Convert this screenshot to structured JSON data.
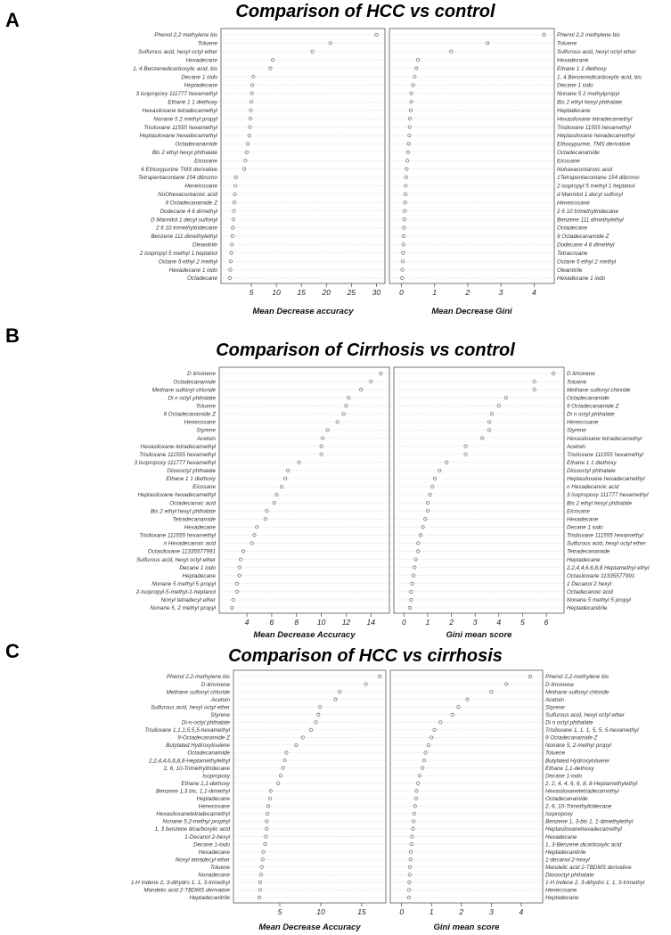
{
  "panels": [
    {
      "letter": "A",
      "title": "Comparison of HCC vs control",
      "left": {
        "xlabel": "Mean Decrease accuracy",
        "xlim": [
          0,
          31
        ],
        "ticks": [
          5,
          10,
          15,
          20,
          25,
          30
        ],
        "labels": [
          "Phenol 2,2 methylene bis",
          "Toluene",
          "Sulfurous acid, hexyl octyl ether",
          "Hexadecane",
          "1, 4 Benzenedicarboxylic acid, bis",
          "Decane 1 iodo",
          "Heptadecane",
          "3 isopropoxy 111777 hexamethyl",
          "Ethane 1 1 diethoxy",
          "Hexasiloxane tetradecamethyl",
          "Nonane 5 2 methyl propyl",
          "Trisiloxane 11555 hexamethyl",
          "Heptasiloxane hexadecamethyl",
          "Octadecanamide",
          "Bis 2 ethyl hexyl phthalate",
          "Eicosane",
          "6 Ethoxypurine TMS derivative",
          "Tetrapentacontane 154 dibromo",
          "Heneicosane",
          "NoOhexacontanoic acid",
          "9 Octadecanamide Z",
          "Dodecane 4 6 dimethyl",
          "D Mannitol 1 decyl sulfonyl",
          "2 6 10 trimethyltridecane",
          "Benzene 111 dimethylethyl",
          "Oleanitrile",
          "2 isopropyl 5 methyl 1 heptanol",
          "Octane 5 ethyl 2 methyl",
          "Hexadecane 1 iodo",
          "Octadecane"
        ],
        "values": [
          30,
          20.8,
          17.2,
          9.3,
          8.8,
          5.4,
          5.2,
          5.1,
          5.0,
          4.9,
          4.8,
          4.7,
          4.6,
          4.3,
          4.1,
          3.8,
          3.6,
          1.9,
          1.8,
          1.7,
          1.6,
          1.5,
          1.4,
          1.3,
          1.2,
          1.1,
          1.0,
          0.9,
          0.8,
          0.7
        ]
      },
      "right": {
        "xlabel": "Mean Decrease Gini",
        "xlim": [
          -0.2,
          4.5
        ],
        "ticks": [
          0,
          1,
          2,
          3,
          4
        ],
        "labels": [
          "Phenol 2,2 methylene bis",
          "Toluene",
          "Sulfurous acid, hexyl octyl ether",
          "Hexadecane",
          "Ethane 1 1 diethoxy",
          "1, 4 Benzenedicarboxylic acid, bis",
          "Decane 1 iodo",
          "Nonane 5 2 methylpropyl",
          "Bis 2 ethyl hexyl phthalate",
          "Heptadecane",
          "Hexasiloxane tetradecamethyl",
          "Trisiloxane 11555 hexamethyl",
          "Heptasiloxane hexadecamethyl",
          "Ethoxypurine, TMS derivative",
          "Octadecanamide",
          "Eicosane",
          "Nohaxacontanoic acid",
          "1Tetrapentacontane 154 dibromo",
          "2 isopropyl 5 methyl 1 heptanol",
          "d Mannitol 1 decyl sulfonyl",
          "Heneicosane",
          "2 6 10 trimethyltridecane",
          "Benzene 111 dimethylethyl",
          "Octadecane",
          "9 Octadecanamide Z",
          "Dodecane 4 6 dimethyl",
          "Tetracosane",
          "Octane 5 ethyl 2 methyl",
          "Oleanitrile",
          "Hexadecane 1 iodo"
        ],
        "values": [
          4.3,
          2.6,
          1.5,
          0.5,
          0.45,
          0.4,
          0.35,
          0.3,
          0.3,
          0.28,
          0.26,
          0.25,
          0.24,
          0.22,
          0.2,
          0.18,
          0.16,
          0.14,
          0.13,
          0.12,
          0.11,
          0.1,
          0.09,
          0.08,
          0.07,
          0.06,
          0.05,
          0.04,
          0.03,
          0.02
        ]
      }
    },
    {
      "letter": "B",
      "title": "Comparison of Cirrhosis vs control",
      "left": {
        "xlabel": "Mean Decrease Accuracy",
        "xlim": [
          2.2,
          15.2
        ],
        "ticks": [
          4,
          6,
          8,
          10,
          12,
          14
        ],
        "labels": [
          "D limonene",
          "Octadecanamide",
          "Methane sulfonyl chloride",
          "Di n octyl phthalate",
          "Toluene",
          "9 Octadecanamide Z",
          "Henecosane",
          "Styrene",
          "Acetoin",
          "Hexasiloxane tetradecamethyl",
          "Trisiloxane 111555 hexamethyl",
          "3 isopropoxy 111777 hexamethyl",
          "Diisooctyl phthalate",
          "Ethane 1 1 diethoxy",
          "Eicosane",
          "Heptasiloxane hexadecamethyl",
          "Octadecanoic acid",
          "Bis 2 ethyl hexyl phthalate",
          "Tetradecanamide",
          "Hexadecane",
          "Trisiloxane 111555 hexamethyl",
          "n Hexadecanoic acid",
          "Octasiloxane 11335577991",
          "Sulfurous acid, hexyl octyl ether",
          "Decane 1 iodo",
          "Heptadecane",
          "Nonane 5 methyl 5 propyl",
          "2-Isopropyl-5-methyl-1-heptanol",
          "Nonyl tetradecyl ether",
          "Nonane 5, 2 methyl propyl"
        ],
        "values": [
          14.8,
          14.0,
          13.2,
          12.2,
          12.0,
          11.8,
          11.3,
          10.5,
          10.1,
          10.0,
          10.0,
          8.2,
          7.3,
          7.1,
          6.8,
          6.4,
          6.2,
          5.6,
          5.5,
          4.8,
          4.6,
          4.4,
          3.7,
          3.5,
          3.4,
          3.4,
          3.2,
          3.2,
          2.9,
          2.8
        ]
      },
      "right": {
        "xlabel": "Gini mean score",
        "xlim": [
          -0.2,
          6.6
        ],
        "ticks": [
          0,
          1,
          2,
          3,
          4,
          5,
          6
        ],
        "labels": [
          "D limonene",
          "Toluene",
          "Methane sulfonyl chloride",
          "Octadecanamide",
          "9 Octadecanamide Z",
          "Di n octyl phthalate",
          "Henecosane",
          "Styrene",
          "Hexasiloxane tetradecamethyl",
          "Acetoin",
          "Trisiloxane 111555 hexamethyl",
          "Ethane 1 1 diethoxy",
          "Diisooctyl phthalate",
          "Heptasiloxane hexadecamethyl",
          "n Hexadecanoic acid",
          "3 isopropoxy 111777 hexamethyl",
          "Bis 2 ethyl hexyl phthalate",
          "Eicosane",
          "Hexadecane",
          "Decane 1 iodo",
          "Trisiloxane 111555 hexamethyl",
          "Sulfurous acid, hexyl octyl ether",
          "Tetradecanamide",
          "Heptadecane",
          "2,2,4,4,6,6,8,8 Heptamethyl ethyl",
          "Octasiloxane 11335577991",
          "1 Decanol 2 hexyl",
          "Octadecanoic acid",
          "Nonane 5 methyl 5 propyl",
          "Heptadecanitrile"
        ],
        "values": [
          6.3,
          5.5,
          5.5,
          4.3,
          4.0,
          3.7,
          3.6,
          3.6,
          3.3,
          2.6,
          2.6,
          1.8,
          1.5,
          1.3,
          1.2,
          1.1,
          1.0,
          1.0,
          0.9,
          0.8,
          0.7,
          0.6,
          0.6,
          0.5,
          0.45,
          0.4,
          0.35,
          0.3,
          0.3,
          0.25
        ]
      }
    },
    {
      "letter": "C",
      "title": "Comparison of HCC vs cirrhosis",
      "left": {
        "xlabel": "Mean Decrease Accuracy",
        "xlim": [
          0,
          17.5
        ],
        "ticks": [
          5,
          10,
          15
        ],
        "labels": [
          "Phenol 2,2-methylene bis",
          "D-limonene",
          "Methane sulfonyl chloride",
          "Acetoin",
          "Sulfurous acid, hexyl octyl ether",
          "Styrene",
          "Di-n-octyl phthalate",
          "Trisiloxane 1,1,1,5,5,5-hexamethyl",
          "9-Octadecanamide Z",
          "Butylated Hydroxytoulene",
          "Octadecanamide",
          "2,2,4,4,6,6,8,8-Heptamethylethyl",
          "2, 6, 10-Trimethyltridecane",
          "Isopropoxy",
          "Ethane 1,1-dethoxy",
          "Benzene 1,3 bis, 1,1-dimethyl",
          "Heptadecane",
          "Henecosane",
          "Hexasiloxanetetradecamethyl",
          "Nonane 5,2-methyl prophyl",
          "1, 3 benzene dicarboxylic acid",
          "1-Decanol 2-hexyl",
          "Decane 1-iodo",
          "Hexadecane",
          "Nonyl tetradecyl ether",
          "Toluene",
          "Nonadecane",
          "1-H Indene 2, 3-dihydro 1, 1, 3-trimethyl",
          "Mandelic acid 2-TBDMS derivative",
          "Heptadecanitrile"
        ],
        "values": [
          17.2,
          15.5,
          12.3,
          11.8,
          9.9,
          9.7,
          9.4,
          8.8,
          7.8,
          7.0,
          5.8,
          5.6,
          5.4,
          5.1,
          4.8,
          3.9,
          3.8,
          3.6,
          3.5,
          3.4,
          3.4,
          3.3,
          3.2,
          3.0,
          2.9,
          2.8,
          2.7,
          2.6,
          2.6,
          2.5
        ]
      },
      "right": {
        "xlabel": "Gini mean score",
        "xlim": [
          -0.2,
          4.6
        ],
        "ticks": [
          0,
          1,
          2,
          3,
          4
        ],
        "labels": [
          "Phenol 2,2-methylene bis",
          "D limonene",
          "Methane sulfonyl chloride",
          "Acetoin",
          "Styrene",
          "Sulfurous acid, hexyl octyl ether",
          "Di n octyl phthalate",
          "Trisiloxane 1, 1, 1, 5, 5, 5-hexamethyl",
          "9 Octadecanamide Z",
          "Nonane 5, 2-methyl propyl",
          "Toluene",
          "Butylated Hydroxytoluene",
          "Ethane 1,1-dethoxy",
          "Decane 1-iodo",
          "2, 2, 4, 4, 6, 6, 8, 8-Heptamethylethyl",
          "Hexasiloxanetetradecamethyl",
          "Octadecanamide",
          "2, 6, 10-Trimethyltridecane",
          "Isopropoxy",
          "Benzene 1, 3-bis 1, 1-dimethylethyl",
          "Heptasiloxanehexadecamethyl",
          "Hexadecane",
          "1, 3-Benzene dicarboxylic acid",
          "Heptadecanitrile",
          "1-decanol 2-hexyl",
          "Mandelic acid 2-TBDMS derivative",
          "Diisooctyl phthalate",
          "1-H Indene 2, 3-dihydro 1, 1, 3-trimethyl",
          "Henecosane",
          "Heptadecane"
        ],
        "values": [
          4.3,
          3.5,
          3.0,
          2.2,
          1.9,
          1.7,
          1.3,
          1.1,
          1.0,
          0.9,
          0.8,
          0.75,
          0.7,
          0.6,
          0.55,
          0.5,
          0.48,
          0.45,
          0.42,
          0.4,
          0.38,
          0.35,
          0.33,
          0.31,
          0.3,
          0.28,
          0.27,
          0.26,
          0.25,
          0.24
        ]
      }
    }
  ],
  "chart_data": [
    {
      "type": "scatter",
      "title": "Comparison of HCC vs control",
      "xlabel": "Mean Decrease accuracy",
      "xlim": [
        0,
        31
      ]
    },
    {
      "type": "scatter",
      "title": "Comparison of HCC vs control",
      "xlabel": "Mean Decrease Gini",
      "xlim": [
        -0.2,
        4.5
      ]
    },
    {
      "type": "scatter",
      "title": "Comparison of Cirrhosis vs control",
      "xlabel": "Mean Decrease Accuracy",
      "xlim": [
        2.2,
        15.2
      ]
    },
    {
      "type": "scatter",
      "title": "Comparison of Cirrhosis vs control",
      "xlabel": "Gini mean score",
      "xlim": [
        -0.2,
        6.6
      ]
    },
    {
      "type": "scatter",
      "title": "Comparison of HCC vs cirrhosis",
      "xlabel": "Mean Decrease Accuracy",
      "xlim": [
        0,
        17.5
      ]
    },
    {
      "type": "scatter",
      "title": "Comparison of HCC vs cirrhosis",
      "xlabel": "Gini mean score",
      "xlim": [
        -0.2,
        4.6
      ]
    }
  ]
}
